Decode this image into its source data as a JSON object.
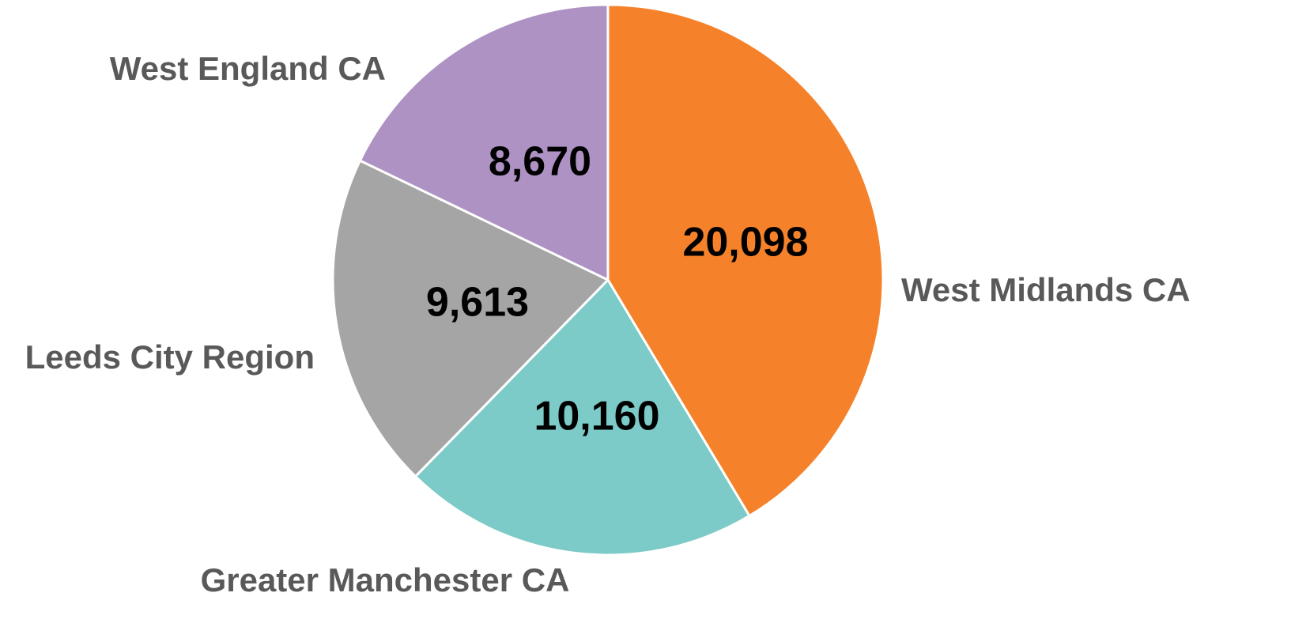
{
  "chart_data": {
    "type": "pie",
    "categories": [
      "West Midlands CA",
      "Greater Manchester CA",
      "Leeds City Region",
      "West England CA"
    ],
    "values": [
      20098,
      10160,
      9613,
      8670
    ],
    "value_labels": [
      "20,098",
      "10,160",
      "9,613",
      "8,670"
    ],
    "colors": [
      "#F5822A",
      "#7CCBC8",
      "#A5A5A5",
      "#AE92C4"
    ]
  }
}
